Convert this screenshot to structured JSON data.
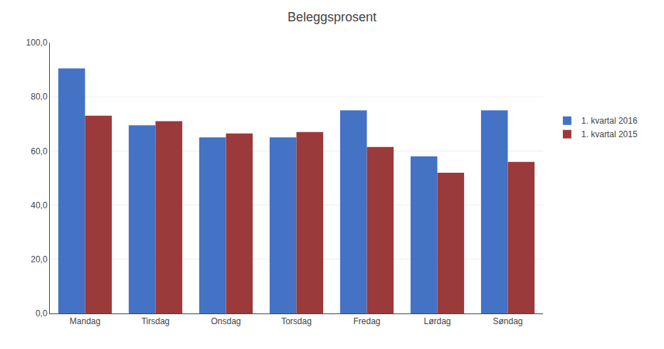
{
  "chart_data": {
    "type": "bar",
    "title": "Beleggsprosent",
    "categories": [
      "Mandag",
      "Tirsdag",
      "Onsdag",
      "Torsdag",
      "Fredag",
      "Lørdag",
      "Søndag"
    ],
    "series": [
      {
        "name": "1. kvartal 2016",
        "color": "#4472C4",
        "values": [
          90.5,
          69.5,
          65.0,
          65.0,
          75.0,
          58.0,
          75.0
        ]
      },
      {
        "name": "1. kvartal 2015",
        "color": "#9B3A3A",
        "values": [
          73.0,
          71.0,
          66.5,
          67.0,
          61.5,
          52.0,
          56.0
        ]
      }
    ],
    "ylim": [
      0,
      100
    ],
    "yticks": [
      {
        "value": 0,
        "label": "0,0"
      },
      {
        "value": 20,
        "label": "20,0"
      },
      {
        "value": 40,
        "label": "40,0"
      },
      {
        "value": 60,
        "label": "60,0"
      },
      {
        "value": 80,
        "label": "80,0"
      },
      {
        "value": 100,
        "label": "100,0"
      }
    ],
    "grid": true,
    "legend": "right"
  }
}
